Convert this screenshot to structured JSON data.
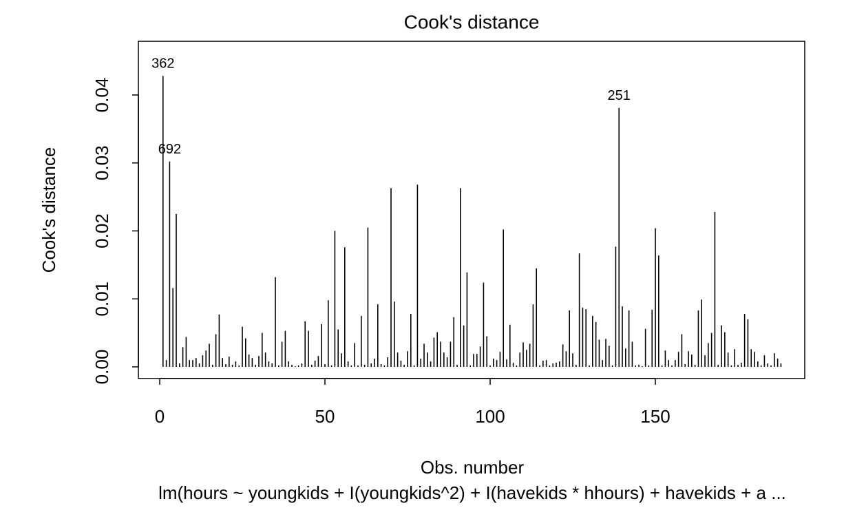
{
  "chart_data": {
    "type": "needle",
    "title": "Cook's distance",
    "subtitle": "lm(hours ~ youngkids + I(youngkids^2) + I(havekids * hhours) + havekids + a ...",
    "xlabel": "Obs. number",
    "ylabel": "Cook's distance",
    "color": "#000000",
    "x": [
      1,
      2,
      3,
      4,
      5,
      6,
      7,
      8,
      9,
      10,
      11,
      12,
      13,
      14,
      15,
      16,
      17,
      18,
      19,
      20,
      21,
      22,
      23,
      24,
      25,
      26,
      27,
      28,
      29,
      30,
      31,
      32,
      33,
      34,
      35,
      36,
      37,
      38,
      39,
      40,
      41,
      42,
      43,
      44,
      45,
      46,
      47,
      48,
      49,
      50,
      51,
      52,
      53,
      54,
      55,
      56,
      57,
      58,
      59,
      60,
      61,
      62,
      63,
      64,
      65,
      66,
      67,
      68,
      69,
      70,
      71,
      72,
      73,
      74,
      75,
      76,
      77,
      78,
      79,
      80,
      81,
      82,
      83,
      84,
      85,
      86,
      87,
      88,
      89,
      90,
      91,
      92,
      93,
      94,
      95,
      96,
      97,
      98,
      99,
      100,
      101,
      102,
      103,
      104,
      105,
      106,
      107,
      108,
      109,
      110,
      111,
      112,
      113,
      114,
      115,
      116,
      117,
      118,
      119,
      120,
      121,
      122,
      123,
      124,
      125,
      126,
      127,
      128,
      129,
      130,
      131,
      132,
      133,
      134,
      135,
      136,
      137,
      138,
      139,
      140,
      141,
      142,
      143,
      144,
      145,
      146,
      147,
      148,
      149,
      150,
      151,
      152,
      153,
      154,
      155,
      156,
      157,
      158,
      159,
      160,
      161,
      162,
      163,
      164,
      165,
      166,
      167,
      168,
      169,
      170,
      171,
      172,
      173,
      174,
      175,
      176,
      177,
      178,
      179,
      180,
      181,
      182,
      183,
      184,
      185,
      186,
      187,
      188
    ],
    "values": [
      0.0428,
      0.001,
      0.0302,
      0.0116,
      0.0225,
      0.0005,
      0.0029,
      0.0044,
      0.001,
      0.001,
      0.0013,
      0.0005,
      0.0017,
      0.0024,
      0.0034,
      0.0003,
      0.0048,
      0.0077,
      0.0013,
      0.0004,
      0.0015,
      0.0003,
      0.0008,
      0.0002,
      0.0059,
      0.0042,
      0.0018,
      0.0013,
      0.0003,
      0.0016,
      0.005,
      0.0021,
      0.0008,
      0.0005,
      0.0132,
      0.0002,
      0.0037,
      0.0053,
      0.0008,
      0.0003,
      0.0001,
      0.0002,
      0.0005,
      0.0067,
      0.0053,
      0.0003,
      0.0009,
      0.0016,
      0.0063,
      0.0004,
      0.0098,
      0.0002,
      0.02,
      0.0055,
      0.002,
      0.0176,
      0.0008,
      0.0002,
      0.0035,
      0.0002,
      0.0075,
      0.0003,
      0.0205,
      0.0005,
      0.0012,
      0.0092,
      0.0004,
      0.0002,
      0.0014,
      0.0263,
      0.0096,
      0.0021,
      0.0009,
      0.0003,
      0.0023,
      0.0078,
      0.0002,
      0.0268,
      0.0012,
      0.0034,
      0.0021,
      0.0008,
      0.0043,
      0.0051,
      0.0037,
      0.0021,
      0.0014,
      0.0037,
      0.0073,
      0.0003,
      0.0263,
      0.0061,
      0.0139,
      0.0002,
      0.0019,
      0.0019,
      0.003,
      0.0124,
      0.0045,
      0.0002,
      0.0012,
      0.001,
      0.0022,
      0.0202,
      0.0011,
      0.0062,
      0.0006,
      0.0002,
      0.0021,
      0.0036,
      0.0025,
      0.0034,
      0.0092,
      0.0145,
      0.0002,
      0.0009,
      0.001,
      0.0002,
      0.0005,
      0.0006,
      0.0008,
      0.0033,
      0.0023,
      0.0083,
      0.002,
      0.0003,
      0.0167,
      0.0087,
      0.0085,
      0.0002,
      0.0075,
      0.0066,
      0.004,
      0.001,
      0.0041,
      0.0031,
      0.0002,
      0.0177,
      0.0381,
      0.0089,
      0.0027,
      0.0083,
      0.0037,
      0.0002,
      0.0003,
      0.0001,
      0.0056,
      0.0002,
      0.0084,
      0.0204,
      0.0164,
      0.0002,
      0.0024,
      0.001,
      0.0002,
      0.001,
      0.0022,
      0.0048,
      0.0004,
      0.0023,
      0.0018,
      0.0003,
      0.0083,
      0.0099,
      0.0017,
      0.0035,
      0.005,
      0.0228,
      0.0003,
      0.0061,
      0.0051,
      0.0021,
      0.0002,
      0.0026,
      0.0003,
      0.0006,
      0.0078,
      0.007,
      0.0026,
      0.0022,
      0.0008,
      0.0002,
      0.0017,
      0.0005,
      0.0002,
      0.002,
      0.0012,
      0.0005
    ],
    "annotations": [
      {
        "text": "362",
        "x": 1
      },
      {
        "text": "692",
        "x": 3
      },
      {
        "text": "251",
        "x": 139
      }
    ],
    "xlim": [
      -6.46,
      195.2
    ],
    "xticks": [
      0,
      50,
      100,
      150
    ],
    "ylim": [
      -0.00172,
      0.0479
    ],
    "yticks": [
      {
        "value": 0,
        "label": "0.00"
      },
      0.01,
      0.02,
      0.03,
      0.04
    ]
  }
}
